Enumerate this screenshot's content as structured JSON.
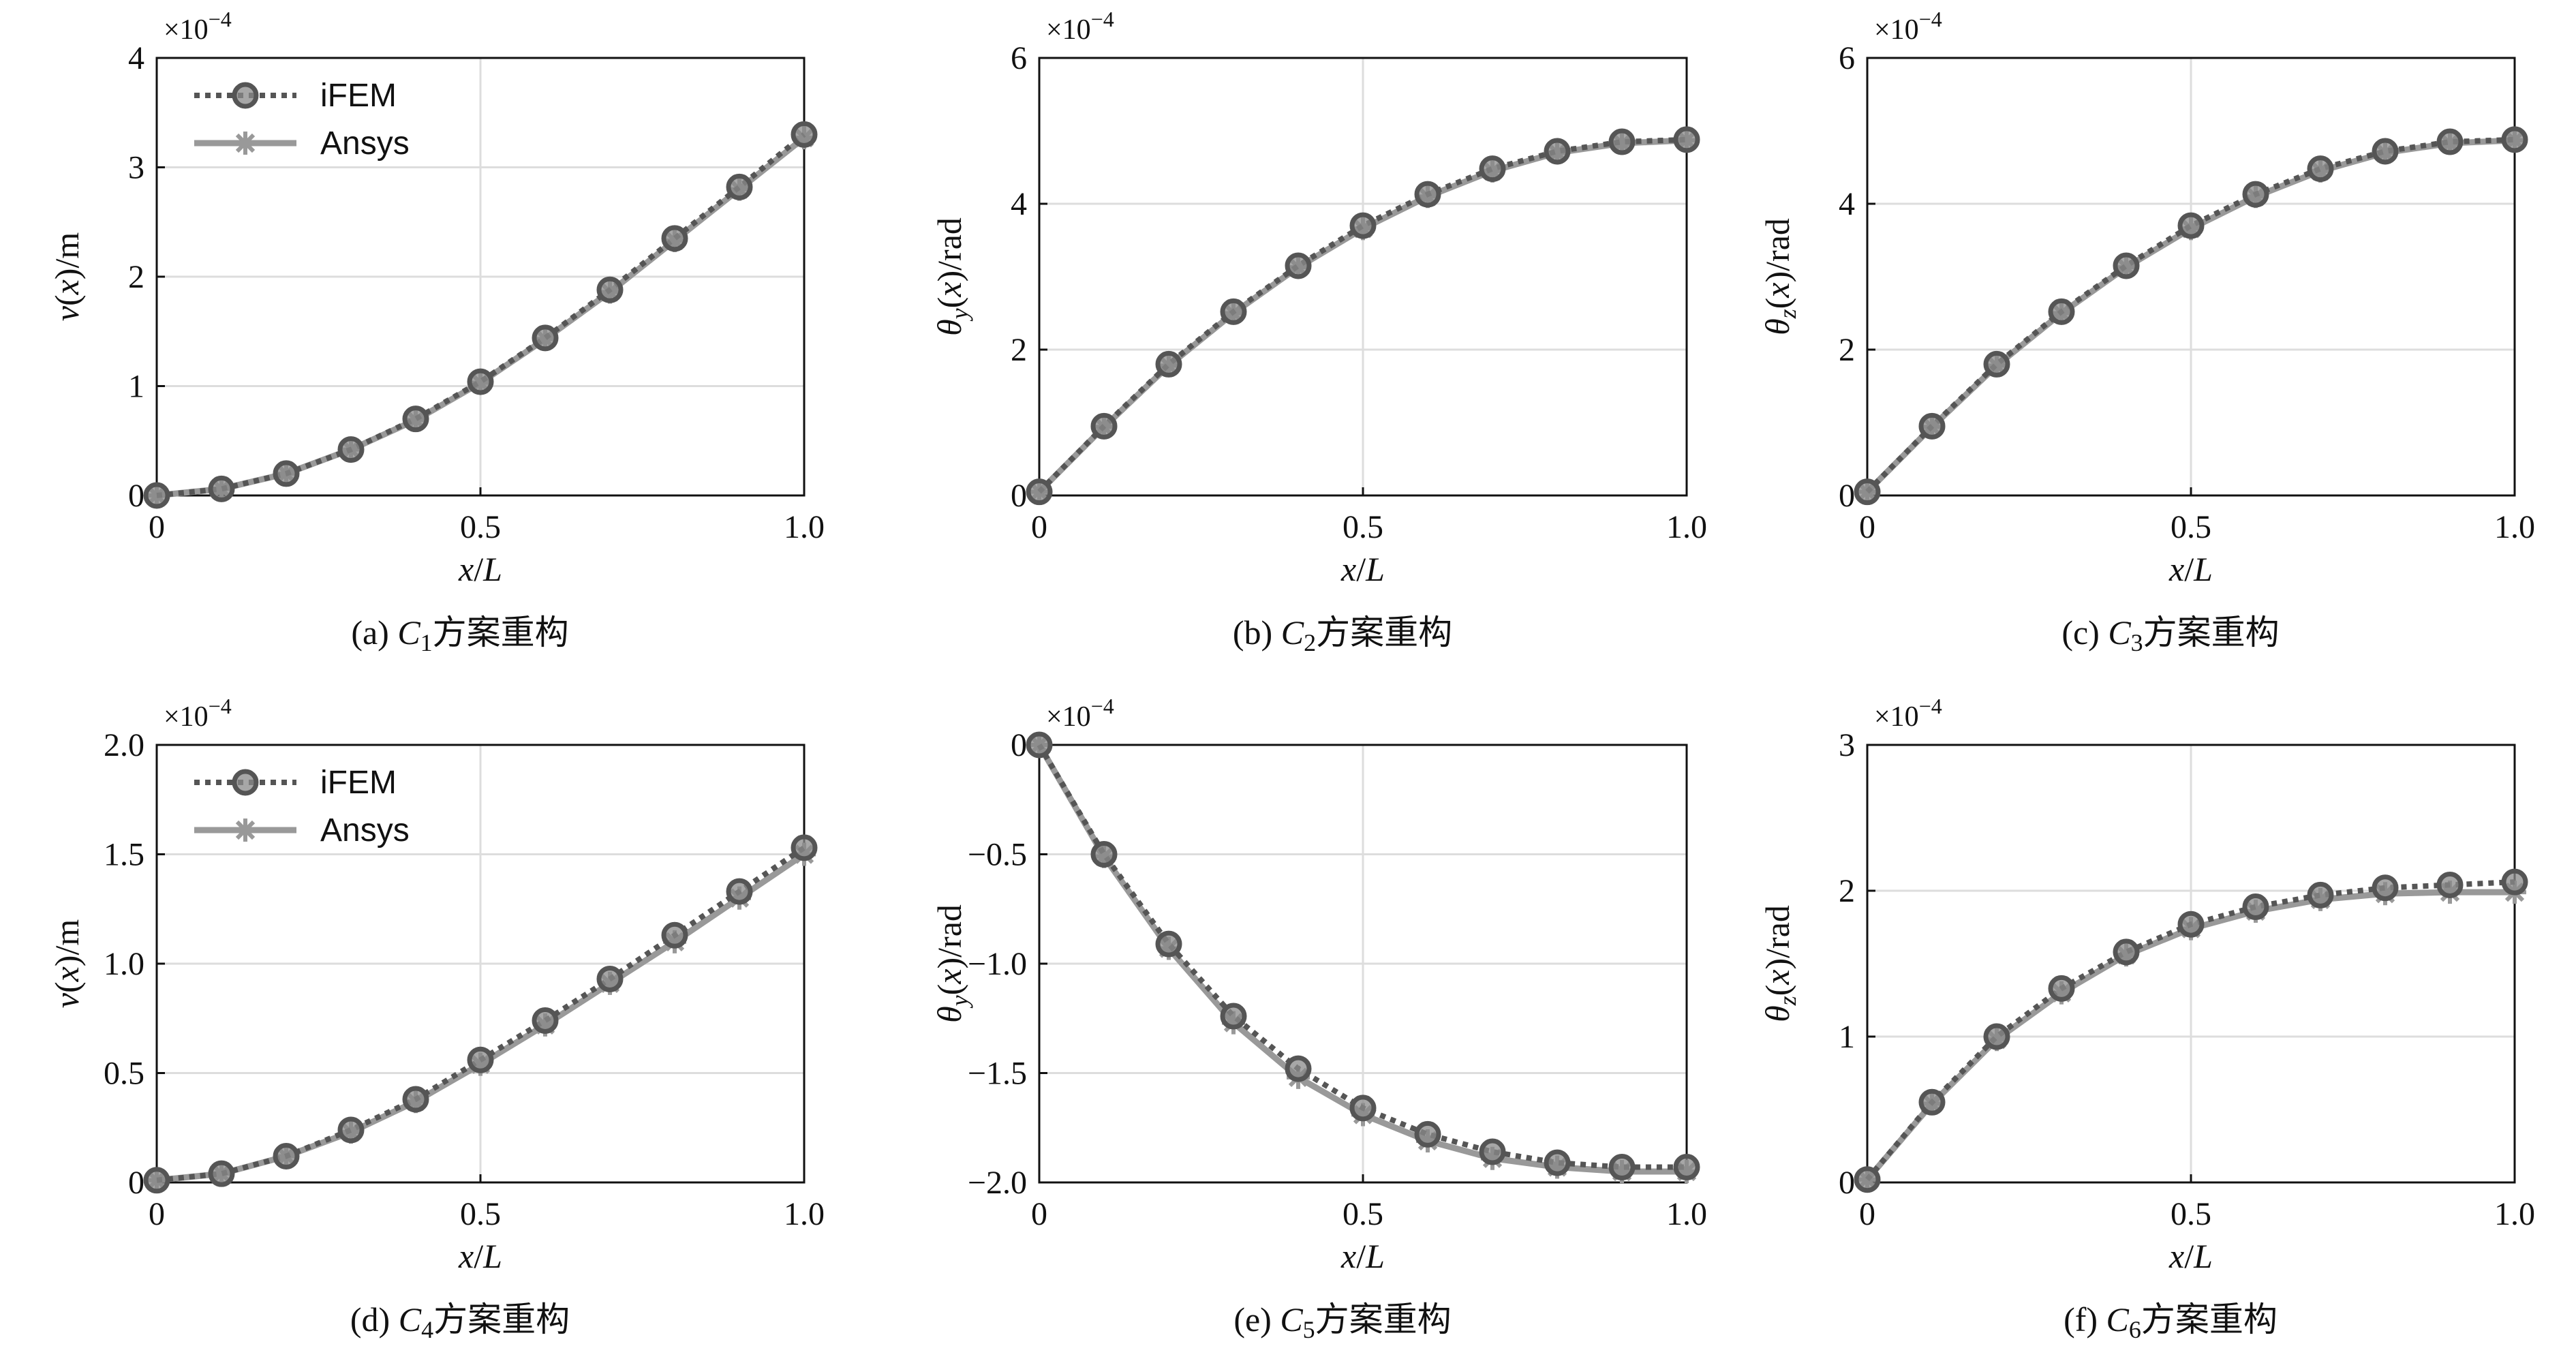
{
  "legend": {
    "items": [
      {
        "label": "iFEM",
        "color": "#555555",
        "style": "dotted",
        "marker": "circle"
      },
      {
        "label": "Ansys",
        "color": "#999999",
        "style": "solid",
        "marker": "star"
      }
    ]
  },
  "colors": {
    "ifem": "#555555",
    "ansys": "#999999",
    "axis": "#111111",
    "grid": "#dddddd"
  },
  "chart_data": [
    {
      "id": "a",
      "type": "line",
      "caption_prefix": "(a) ",
      "caption_var": "C",
      "caption_sub": "1",
      "caption_suffix": "方案重构",
      "ylabel": "v(x)/m",
      "xlabel": "x/L",
      "exponent_text": "×10",
      "exponent_power": "−4",
      "xlim": [
        0,
        1
      ],
      "ylim": [
        0,
        4
      ],
      "xticks": [
        0,
        0.5,
        1
      ],
      "xtick_labels": [
        "0",
        "0.5",
        "1.0"
      ],
      "yticks": [
        0,
        1,
        2,
        3,
        4
      ],
      "ytick_labels": [
        "0",
        "1",
        "2",
        "3",
        "4"
      ],
      "grid": true,
      "legend": "top-left",
      "x": [
        0,
        0.1,
        0.2,
        0.3,
        0.4,
        0.5,
        0.6,
        0.7,
        0.8,
        0.9,
        1.0
      ],
      "series": [
        {
          "name": "iFEM",
          "values": [
            0,
            0.06,
            0.2,
            0.42,
            0.7,
            1.04,
            1.44,
            1.88,
            2.35,
            2.82,
            3.3
          ]
        },
        {
          "name": "Ansys",
          "values": [
            0,
            0.06,
            0.2,
            0.42,
            0.69,
            1.03,
            1.43,
            1.86,
            2.33,
            2.8,
            3.27
          ]
        }
      ]
    },
    {
      "id": "b",
      "type": "line",
      "caption_prefix": "(b) ",
      "caption_var": "C",
      "caption_sub": "2",
      "caption_suffix": "方案重构",
      "ylabel": "θy(x)/rad",
      "xlabel": "x/L",
      "exponent_text": "×10",
      "exponent_power": "−4",
      "xlim": [
        0,
        1
      ],
      "ylim": [
        0,
        6
      ],
      "xticks": [
        0,
        0.5,
        1
      ],
      "xtick_labels": [
        "0",
        "0.5",
        "1.0"
      ],
      "yticks": [
        0,
        2,
        4,
        6
      ],
      "ytick_labels": [
        "0",
        "2",
        "4",
        "6"
      ],
      "grid": true,
      "legend": "none",
      "x": [
        0,
        0.1,
        0.2,
        0.3,
        0.4,
        0.5,
        0.6,
        0.7,
        0.8,
        0.9,
        1.0
      ],
      "series": [
        {
          "name": "iFEM",
          "values": [
            0.05,
            0.95,
            1.8,
            2.52,
            3.15,
            3.7,
            4.13,
            4.48,
            4.72,
            4.85,
            4.88
          ]
        },
        {
          "name": "Ansys",
          "values": [
            0.05,
            0.94,
            1.78,
            2.5,
            3.13,
            3.66,
            4.1,
            4.45,
            4.7,
            4.83,
            4.87
          ]
        }
      ]
    },
    {
      "id": "c",
      "type": "line",
      "caption_prefix": "(c) ",
      "caption_var": "C",
      "caption_sub": "3",
      "caption_suffix": "方案重构",
      "ylabel": "θz(x)/rad",
      "xlabel": "x/L",
      "exponent_text": "×10",
      "exponent_power": "−4",
      "xlim": [
        0,
        1
      ],
      "ylim": [
        0,
        6
      ],
      "xticks": [
        0,
        0.5,
        1
      ],
      "xtick_labels": [
        "0",
        "0.5",
        "1.0"
      ],
      "yticks": [
        0,
        2,
        4,
        6
      ],
      "ytick_labels": [
        "0",
        "2",
        "4",
        "6"
      ],
      "grid": true,
      "legend": "none",
      "x": [
        0,
        0.1,
        0.2,
        0.3,
        0.4,
        0.5,
        0.6,
        0.7,
        0.8,
        0.9,
        1.0
      ],
      "series": [
        {
          "name": "iFEM",
          "values": [
            0.05,
            0.95,
            1.8,
            2.52,
            3.15,
            3.7,
            4.13,
            4.48,
            4.72,
            4.85,
            4.88
          ]
        },
        {
          "name": "Ansys",
          "values": [
            0.05,
            0.94,
            1.78,
            2.5,
            3.13,
            3.66,
            4.1,
            4.45,
            4.7,
            4.83,
            4.87
          ]
        }
      ]
    },
    {
      "id": "d",
      "type": "line",
      "caption_prefix": "(d) ",
      "caption_var": "C",
      "caption_sub": "4",
      "caption_suffix": "方案重构",
      "ylabel": "v(x)/m",
      "xlabel": "x/L",
      "exponent_text": "×10",
      "exponent_power": "−4",
      "xlim": [
        0,
        1
      ],
      "ylim": [
        0,
        2
      ],
      "xticks": [
        0,
        0.5,
        1
      ],
      "xtick_labels": [
        "0",
        "0.5",
        "1.0"
      ],
      "yticks": [
        0,
        0.5,
        1,
        1.5,
        2
      ],
      "ytick_labels": [
        "0",
        "0.5",
        "1.0",
        "1.5",
        "2.0"
      ],
      "grid": true,
      "legend": "top-left",
      "x": [
        0,
        0.1,
        0.2,
        0.3,
        0.4,
        0.5,
        0.6,
        0.7,
        0.8,
        0.9,
        1.0
      ],
      "series": [
        {
          "name": "iFEM",
          "values": [
            0.01,
            0.04,
            0.12,
            0.24,
            0.38,
            0.56,
            0.74,
            0.93,
            1.13,
            1.33,
            1.53
          ]
        },
        {
          "name": "Ansys",
          "values": [
            0.01,
            0.04,
            0.12,
            0.23,
            0.37,
            0.54,
            0.72,
            0.91,
            1.1,
            1.3,
            1.5
          ]
        }
      ]
    },
    {
      "id": "e",
      "type": "line",
      "caption_prefix": "(e) ",
      "caption_var": "C",
      "caption_sub": "5",
      "caption_suffix": "方案重构",
      "ylabel": "θy(x)/rad",
      "xlabel": "x/L",
      "exponent_text": "×10",
      "exponent_power": "−4",
      "xlim": [
        0,
        1
      ],
      "ylim": [
        -2,
        0
      ],
      "xticks": [
        0,
        0.5,
        1
      ],
      "xtick_labels": [
        "0",
        "0.5",
        "1.0"
      ],
      "yticks": [
        -2,
        -1.5,
        -1,
        -0.5,
        0
      ],
      "ytick_labels": [
        "−2.0",
        "−1.5",
        "−1.0",
        "−0.5",
        "0"
      ],
      "grid": true,
      "legend": "none",
      "x": [
        0,
        0.1,
        0.2,
        0.3,
        0.4,
        0.5,
        0.6,
        0.7,
        0.8,
        0.9,
        1.0
      ],
      "series": [
        {
          "name": "iFEM",
          "values": [
            0,
            -0.5,
            -0.91,
            -1.24,
            -1.48,
            -1.66,
            -1.78,
            -1.86,
            -1.91,
            -1.93,
            -1.93
          ]
        },
        {
          "name": "Ansys",
          "values": [
            0,
            -0.51,
            -0.93,
            -1.27,
            -1.52,
            -1.69,
            -1.81,
            -1.89,
            -1.93,
            -1.95,
            -1.95
          ]
        }
      ]
    },
    {
      "id": "f",
      "type": "line",
      "caption_prefix": "(f) ",
      "caption_var": "C",
      "caption_sub": "6",
      "caption_suffix": "方案重构",
      "ylabel": "θz(x)/rad",
      "xlabel": "x/L",
      "exponent_text": "×10",
      "exponent_power": "−4",
      "xlim": [
        0,
        1
      ],
      "ylim": [
        0,
        3
      ],
      "xticks": [
        0,
        0.5,
        1
      ],
      "xtick_labels": [
        "0",
        "0.5",
        "1.0"
      ],
      "yticks": [
        0,
        1,
        2,
        3
      ],
      "ytick_labels": [
        "0",
        "1",
        "2",
        "3"
      ],
      "grid": true,
      "legend": "none",
      "x": [
        0,
        0.1,
        0.2,
        0.3,
        0.4,
        0.5,
        0.6,
        0.7,
        0.8,
        0.9,
        1.0
      ],
      "series": [
        {
          "name": "iFEM",
          "values": [
            0.02,
            0.55,
            1.0,
            1.33,
            1.58,
            1.77,
            1.89,
            1.97,
            2.02,
            2.04,
            2.06
          ]
        },
        {
          "name": "Ansys",
          "values": [
            0.02,
            0.54,
            0.98,
            1.3,
            1.56,
            1.74,
            1.86,
            1.94,
            1.98,
            1.99,
            1.99
          ]
        }
      ]
    }
  ]
}
